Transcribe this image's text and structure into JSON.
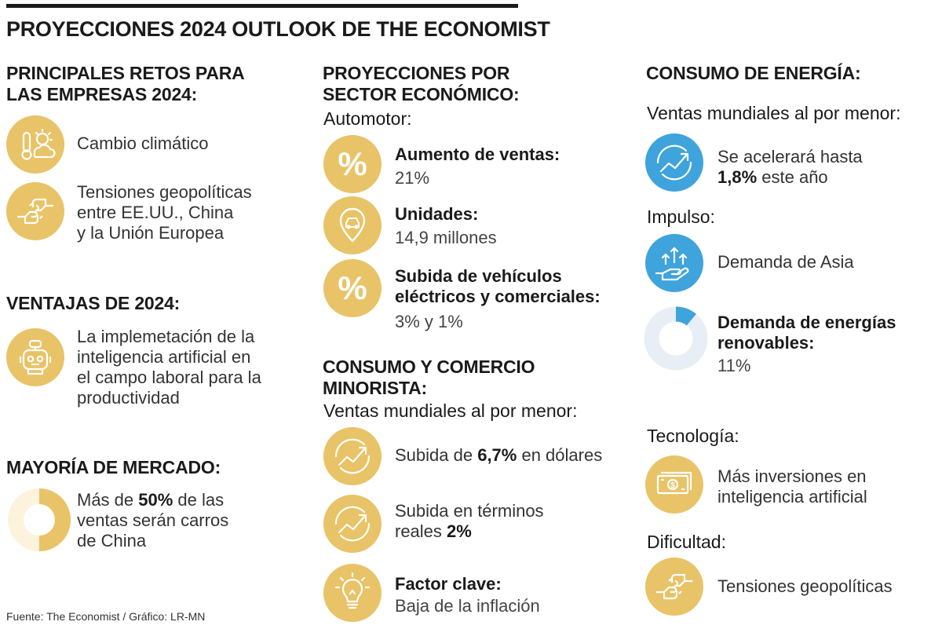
{
  "title": "PROYECCIONES 2024 OUTLOOK DE THE ECONOMIST",
  "source": "Fuente: The Economist / Gráfico: LR-MN",
  "colors": {
    "gold": "#E8C367",
    "blue": "#3FA3DC",
    "light_gray": "#E8EEF6",
    "cream": "#FCF3DC",
    "text": "#1a1a1a"
  },
  "col1": {
    "retos_title_1": "PRINCIPALES RETOS PARA",
    "retos_title_2": "LAS EMPRESAS 2024:",
    "retos": [
      {
        "icon": "climate-icon",
        "lines": [
          "Cambio climático"
        ]
      },
      {
        "icon": "conflict-fists-icon",
        "lines": [
          "Tensiones geopolíticas",
          "entre EE.UU., China",
          "y la Unión Europea"
        ]
      }
    ],
    "ventajas_title": "VENTAJAS DE 2024:",
    "ventajas": {
      "icon": "robot-ai-icon",
      "lines": [
        "La implemetación de la",
        "inteligencia artificial en",
        "el campo laboral para la",
        "productividad"
      ]
    },
    "mercado_title": "MAYORÍA DE MERCADO:",
    "mercado": {
      "pre": "Más de ",
      "bold": "50%",
      "post": " de las",
      "line2": "ventas serán carros",
      "line3": "de China",
      "share_percent": 50
    }
  },
  "col2": {
    "sector_title_1": "PROYECCIONES POR",
    "sector_title_2": "SECTOR ECONÓMICO:",
    "automotor": "Automotor:",
    "items": [
      {
        "icon": "percent-icon",
        "label": "Aumento de ventas:",
        "value": "21%"
      },
      {
        "icon": "car-pin-icon",
        "label": "Unidades:",
        "value": "14,9 millones"
      },
      {
        "icon": "percent-icon",
        "label": "Subida de vehículos",
        "label2": "eléctricos y comerciales:",
        "value": "3% y 1%"
      }
    ],
    "consumo_title_1": "CONSUMO Y COMERCIO",
    "consumo_title_2": "MINORISTA:",
    "ventas_sub": "Ventas mundiales al por menor:",
    "consumo": [
      {
        "icon": "growth-chart-icon",
        "pre": "Subida de ",
        "bold": "6,7%",
        "post": " en dólares"
      },
      {
        "icon": "growth-chart-icon",
        "line1": "Subida en términos",
        "pre": "reales ",
        "bold": "2%"
      },
      {
        "icon": "lightbulb-icon",
        "label": "Factor clave:",
        "value": "Baja de la inflación"
      }
    ]
  },
  "col3": {
    "energia_title": "CONSUMO DE ENERGÍA:",
    "ventas_sub": "Ventas mundiales al por menor:",
    "accel_line1": "Se acelerará hasta",
    "accel_bold": "1,8%",
    "accel_post": " este año",
    "impulso": "Impulso:",
    "asia": "Demanda de Asia",
    "renovables_label1": "Demanda de energías",
    "renovables_label2": "renovables:",
    "renovables_value": "11%",
    "renovables_percent": 11,
    "tecnologia": "Tecnología:",
    "tec_line1": "Más inversiones en",
    "tec_line2": "inteligencia artificial",
    "dificultad": "Dificultad:",
    "dif_text": "Tensiones geopolíticas"
  }
}
